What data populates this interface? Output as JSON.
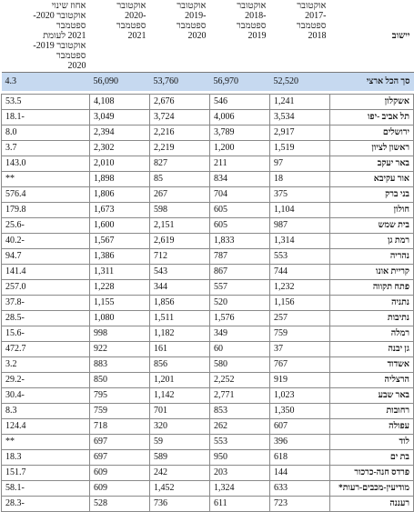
{
  "table": {
    "header": [
      "יישוב",
      "אוקטובר\n-2017\nספטמבר\n2018",
      "אוקטובר\n-2018\nספטמבר\n2019",
      "אוקטובר\n-2019\nספטמבר\n2020",
      "אוקטובר\n-2020\nספטמבר\n2021",
      "אחוז שינוי\nאוקטובר 2020-ספטמבר\n2021 לעומת\nאוקטובר 2019-ספטמבר\n2020"
    ],
    "total": [
      "סך הכל ארצי",
      "52,520",
      "56,970",
      "53,760",
      "56,090",
      "4.3"
    ],
    "rows": [
      [
        "אשקלון",
        "1,241",
        "546",
        "2,676",
        "4,108",
        "53.5"
      ],
      [
        "תל אביב -יפו",
        "3,534",
        "4,006",
        "3,724",
        "3,049",
        "18.1-"
      ],
      [
        "ירושלים",
        "2,917",
        "3,789",
        "2,216",
        "2,394",
        "8.0"
      ],
      [
        "ראשון לציון",
        "1,519",
        "1,200",
        "2,219",
        "2,302",
        "3.7"
      ],
      [
        "באר יעקב",
        "97",
        "211",
        "827",
        "2,010",
        "143.0"
      ],
      [
        "אור עקיבא",
        "18",
        "834",
        "85",
        "1,898",
        "**"
      ],
      [
        "בני ברק",
        "375",
        "704",
        "267",
        "1,806",
        "576.4"
      ],
      [
        "חולון",
        "1,104",
        "605",
        "598",
        "1,673",
        "179.8"
      ],
      [
        "בית שמש",
        "987",
        "605",
        "2,151",
        "1,600",
        "25.6-"
      ],
      [
        "רמת גן",
        "1,314",
        "1,833",
        "2,619",
        "1,567",
        "40.2-"
      ],
      [
        "נהריה",
        "553",
        "787",
        "712",
        "1,386",
        "94.7"
      ],
      [
        "קריית אונו",
        "744",
        "867",
        "543",
        "1,311",
        "141.4"
      ],
      [
        "פתח תקווה",
        "1,232",
        "557",
        "344",
        "1,228",
        "257.0"
      ],
      [
        "נתניה",
        "1,156",
        "520",
        "1,856",
        "1,155",
        "37.8-"
      ],
      [
        "נתיבות",
        "257",
        "1,576",
        "1,511",
        "1,080",
        "28.5-"
      ],
      [
        "רמלה",
        "759",
        "349",
        "1,182",
        "998",
        "15.6-"
      ],
      [
        "גן יבנה",
        "37",
        "60",
        "161",
        "922",
        "472.7"
      ],
      [
        "אשדוד",
        "767",
        "580",
        "856",
        "883",
        "3.2"
      ],
      [
        "הרצליה",
        "919",
        "2,252",
        "1,201",
        "850",
        "29.2-"
      ],
      [
        "באר שבע",
        "1,023",
        "2,771",
        "1,142",
        "795",
        "30.4-"
      ],
      [
        "רחובות",
        "1,350",
        "853",
        "701",
        "759",
        "8.3"
      ],
      [
        "עפולה",
        "607",
        "262",
        "320",
        "718",
        "124.4"
      ],
      [
        "לוד",
        "396",
        "553",
        "59",
        "697",
        "**"
      ],
      [
        "בת ים",
        "618",
        "950",
        "589",
        "697",
        "18.3"
      ],
      [
        "פרדס חנה-כרכור",
        "144",
        "203",
        "242",
        "609",
        "151.7"
      ],
      [
        "מודיעין-מכבים-רעות*",
        "633",
        "1,324",
        "1,452",
        "609",
        "58.1-"
      ],
      [
        "רעננה",
        "723",
        "611",
        "736",
        "528",
        "28.3-"
      ]
    ]
  }
}
